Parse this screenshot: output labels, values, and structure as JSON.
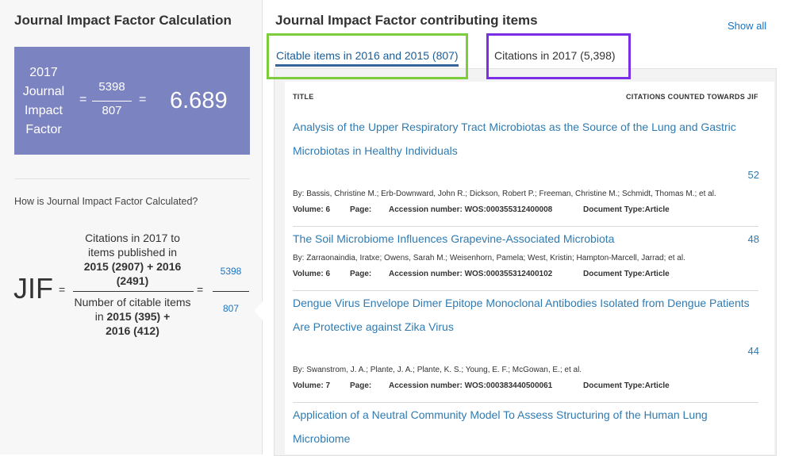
{
  "left": {
    "title": "Journal Impact Factor Calculation",
    "box": {
      "year_label_lines": [
        "2017",
        "Journal",
        "Impact",
        "Factor"
      ],
      "equals": "=",
      "numerator": "5398",
      "denominator": "807",
      "value": "6.689",
      "bg_color": "#7c83c1"
    },
    "how_label": "How is Journal Impact Factor Calculated?",
    "formula": {
      "jif": "JIF",
      "equals": "=",
      "numerator_text": "Citations in 2017 to items published in",
      "numerator_bold1": "2015 (2907) + 2016",
      "numerator_bold2": "(2491)",
      "denominator_text": "Number of citable items in",
      "denominator_bold1": "2015 (395) +",
      "denominator_bold2": "2016 (412)",
      "result_numerator": "5398",
      "result_denominator": "807"
    }
  },
  "right": {
    "title": "Journal Impact Factor contributing items",
    "show_all": "Show all",
    "tabs": [
      {
        "label": "Citable items in 2016 and 2015 (807)",
        "active": true,
        "highlight_color": "#7ccd3c"
      },
      {
        "label": "Citations in 2017 (5,398)",
        "active": false,
        "highlight_color": "#7a2ee6"
      }
    ],
    "columns": {
      "title": "TITLE",
      "citations": "CITATIONS COUNTED TOWARDS JIF"
    },
    "items": [
      {
        "title": "Analysis of the Upper Respiratory Tract Microbiotas as the Source of the Lung and Gastric Microbiotas in Healthy Individuals",
        "citations": "52",
        "authors": "By: Bassis, Christine M.; Erb-Downward, John R.; Dickson, Robert P.; Freeman, Christine M.; Schmidt, Thomas M.; et al.",
        "volume": "Volume: 6",
        "page": "Page:",
        "accession": "Accession number: WOS:000355312400008",
        "doctype": "Document Type:Article"
      },
      {
        "title": "The Soil Microbiome Influences Grapevine-Associated Microbiota",
        "citations": "48",
        "authors": "By: Zarraonaindia, Iratxe; Owens, Sarah M.; Weisenhorn, Pamela; West, Kristin; Hampton-Marcell, Jarrad; et al.",
        "volume": "Volume: 6",
        "page": "Page:",
        "accession": "Accession number: WOS:000355312400102",
        "doctype": "Document Type:Article"
      },
      {
        "title": "Dengue Virus Envelope Dimer Epitope Monoclonal Antibodies Isolated from Dengue Patients Are Protective against Zika Virus",
        "citations": "44",
        "authors": "By: Swanstrom, J. A.; Plante, J. A.; Plante, K. S.; Young, E. F.; McGowan, E.; et al.",
        "volume": "Volume: 7",
        "page": "Page:",
        "accession": "Accession number: WOS:000383440500061",
        "doctype": "Document Type:Article"
      },
      {
        "title": "Application of a Neutral Community Model To Assess Structuring of the Human Lung Microbiome"
      }
    ]
  }
}
